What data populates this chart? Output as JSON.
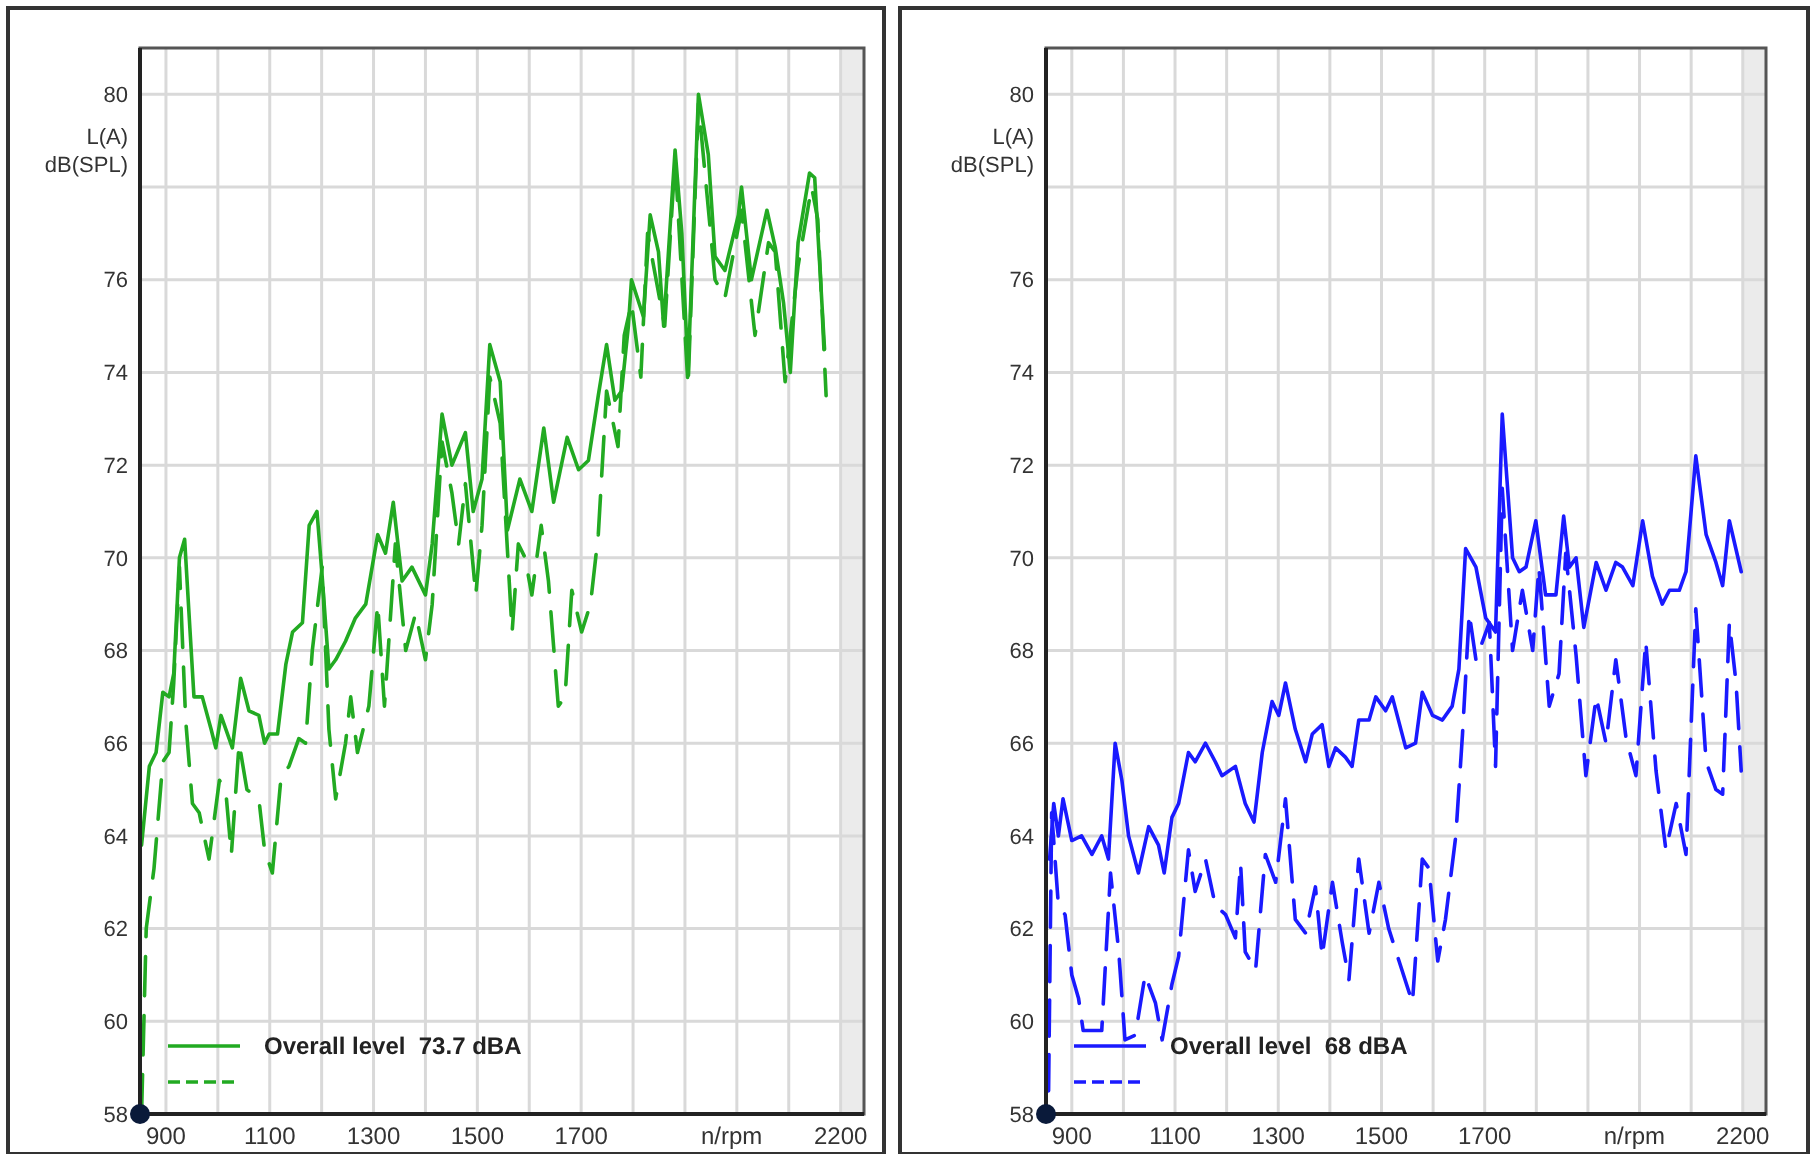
{
  "chart_data": [
    {
      "type": "line",
      "xlabel": "n/rpm",
      "ylabel": "L(A)\ndB(SPL)",
      "xlim": [
        850,
        2245
      ],
      "ylim": [
        58,
        81
      ],
      "xticks": [
        900,
        {
          "value": 1000,
          "label": null
        },
        1100,
        {
          "value": 1200,
          "label": null
        },
        1300,
        {
          "value": 1400,
          "label": null
        },
        1500,
        {
          "value": 1600,
          "label": null
        },
        1700,
        {
          "value": 1800,
          "label": null
        },
        {
          "value": 1900,
          "label": null
        },
        {
          "value": 2000,
          "label": null
        },
        {
          "value": 2100,
          "label": null
        },
        2200
      ],
      "yticks": [
        58,
        60,
        62,
        64,
        66,
        68,
        70,
        72,
        74,
        76,
        {
          "value": 78,
          "label": null
        },
        80
      ],
      "grid": true,
      "legend": "bottom left",
      "bands": [
        {
          "axis": "x",
          "from": 2200,
          "to": 2245,
          "color": "#ebebeb"
        }
      ],
      "series": [
        {
          "name": "Overall level  73.7 dBA",
          "color": "#22aa22",
          "line_style": "solid",
          "x": [
            853,
            868,
            881,
            894,
            906,
            915,
            926,
            936,
            946,
            954,
            970,
            987,
            996,
            1006,
            1028,
            1044,
            1060,
            1079,
            1090,
            1099,
            1115,
            1131,
            1144,
            1163,
            1176,
            1191,
            1201,
            1214,
            1227,
            1246,
            1265,
            1285,
            1308,
            1323,
            1338,
            1355,
            1374,
            1400,
            1413,
            1432,
            1451,
            1477,
            1492,
            1509,
            1524,
            1544,
            1558,
            1582,
            1605,
            1628,
            1647,
            1673,
            1695,
            1714,
            1733,
            1749,
            1765,
            1778,
            1791,
            1797,
            1820,
            1833,
            1849,
            1859,
            1881,
            1894,
            1906,
            1926,
            1945,
            1958,
            1977,
            2003,
            2009,
            2028,
            2058,
            2074,
            2090,
            2103,
            2118,
            2140,
            2150,
            2169
          ],
          "values": [
            63.8,
            65.5,
            65.8,
            67.1,
            67.0,
            67.5,
            70.0,
            70.4,
            68.5,
            67.0,
            67.0,
            66.3,
            65.9,
            66.6,
            65.9,
            67.4,
            66.7,
            66.6,
            66.0,
            66.2,
            66.2,
            67.7,
            68.4,
            68.6,
            70.7,
            71.0,
            69.6,
            67.6,
            67.8,
            68.2,
            68.7,
            69.0,
            70.5,
            70.1,
            71.2,
            69.5,
            69.8,
            69.2,
            70.3,
            73.1,
            72.0,
            72.7,
            71.0,
            71.7,
            74.6,
            73.8,
            70.6,
            71.7,
            71.0,
            72.8,
            71.2,
            72.6,
            71.9,
            72.1,
            73.5,
            74.6,
            73.4,
            73.6,
            75.0,
            76.0,
            75.2,
            77.4,
            76.6,
            75.0,
            78.8,
            77.0,
            74.0,
            80.0,
            78.7,
            76.5,
            76.2,
            77.4,
            78.0,
            76.0,
            77.5,
            76.7,
            75.5,
            74.0,
            76.8,
            78.3,
            78.2,
            74.5
          ]
        },
        {
          "color": "#22aa22",
          "line_style": "dashed",
          "x": [
            853,
            862,
            877,
            894,
            906,
            915,
            926,
            938,
            951,
            964,
            983,
            1003,
            1015,
            1026,
            1041,
            1056,
            1079,
            1090,
            1105,
            1122,
            1137,
            1156,
            1169,
            1182,
            1201,
            1214,
            1227,
            1246,
            1256,
            1269,
            1291,
            1308,
            1321,
            1342,
            1362,
            1381,
            1400,
            1413,
            1432,
            1451,
            1464,
            1477,
            1497,
            1509,
            1524,
            1544,
            1567,
            1579,
            1592,
            1605,
            1623,
            1637,
            1656,
            1669,
            1682,
            1701,
            1718,
            1733,
            1749,
            1771,
            1783,
            1797,
            1815,
            1828,
            1861,
            1881,
            1906,
            1926,
            1958,
            1977,
            2009,
            2035,
            2061,
            2074,
            2093,
            2118,
            2144,
            2156,
            2172
          ],
          "values": [
            58.0,
            62.0,
            63.3,
            65.6,
            65.8,
            67.3,
            69.8,
            66.5,
            64.7,
            64.5,
            63.5,
            65.2,
            65.0,
            63.6,
            66.0,
            65.0,
            64.8,
            63.7,
            63.2,
            65.3,
            65.5,
            66.1,
            66.0,
            68.0,
            69.8,
            66.3,
            64.8,
            66.0,
            67.0,
            65.8,
            66.8,
            69.0,
            66.8,
            70.3,
            68.0,
            68.8,
            67.8,
            69.0,
            72.5,
            71.4,
            70.3,
            71.6,
            69.2,
            70.7,
            73.9,
            72.9,
            68.4,
            70.3,
            70.0,
            69.2,
            70.7,
            69.5,
            66.8,
            67.0,
            69.3,
            68.4,
            69.0,
            70.5,
            73.6,
            72.4,
            74.8,
            75.5,
            73.9,
            77.0,
            75.0,
            78.6,
            73.7,
            79.8,
            76.0,
            75.6,
            77.5,
            74.8,
            76.8,
            76.6,
            73.8,
            76.3,
            78.0,
            77.3,
            73.5
          ]
        }
      ]
    },
    {
      "type": "line",
      "xlabel": "n/rpm",
      "ylabel": "L(A)\ndB(SPL)",
      "xlim": [
        850,
        2245
      ],
      "ylim": [
        58,
        81
      ],
      "xticks": [
        900,
        {
          "value": 1000,
          "label": null
        },
        1100,
        {
          "value": 1200,
          "label": null
        },
        1300,
        {
          "value": 1400,
          "label": null
        },
        1500,
        {
          "value": 1600,
          "label": null
        },
        1700,
        {
          "value": 1800,
          "label": null
        },
        {
          "value": 1900,
          "label": null
        },
        {
          "value": 2000,
          "label": null
        },
        {
          "value": 2100,
          "label": null
        },
        2200
      ],
      "yticks": [
        58,
        60,
        62,
        64,
        66,
        68,
        70,
        72,
        74,
        76,
        {
          "value": 78,
          "label": null
        },
        80
      ],
      "grid": true,
      "legend": "bottom left",
      "bands": [
        {
          "axis": "x",
          "from": 2200,
          "to": 2245,
          "color": "#ebebeb"
        }
      ],
      "series": [
        {
          "name": "Overall level  68 dBA",
          "color": "#1a1aff",
          "line_style": "solid",
          "x": [
            857,
            865,
            874,
            883,
            900,
            919,
            939,
            958,
            971,
            984,
            997,
            1010,
            1029,
            1049,
            1068,
            1079,
            1094,
            1107,
            1126,
            1139,
            1159,
            1178,
            1191,
            1217,
            1236,
            1253,
            1269,
            1288,
            1301,
            1314,
            1333,
            1353,
            1366,
            1385,
            1398,
            1411,
            1430,
            1443,
            1456,
            1476,
            1489,
            1508,
            1521,
            1547,
            1566,
            1579,
            1599,
            1618,
            1637,
            1650,
            1663,
            1683,
            1702,
            1721,
            1734,
            1754,
            1767,
            1780,
            1799,
            1818,
            1838,
            1853,
            1864,
            1877,
            1892,
            1916,
            1935,
            1954,
            1967,
            1987,
            2006,
            2025,
            2044,
            2058,
            2077,
            2090,
            2109,
            2129,
            2148,
            2161,
            2174,
            2197
          ],
          "values": [
            63.5,
            64.7,
            64.0,
            64.8,
            63.9,
            64.0,
            63.6,
            64.0,
            63.5,
            66.0,
            65.2,
            64.0,
            63.2,
            64.2,
            63.8,
            63.2,
            64.4,
            64.7,
            65.8,
            65.6,
            66.0,
            65.6,
            65.3,
            65.5,
            64.7,
            64.3,
            65.8,
            66.9,
            66.6,
            67.3,
            66.3,
            65.6,
            66.2,
            66.4,
            65.5,
            65.9,
            65.7,
            65.5,
            66.5,
            66.5,
            67.0,
            66.7,
            67.0,
            65.9,
            66.0,
            67.1,
            66.6,
            66.5,
            66.8,
            67.6,
            70.2,
            69.8,
            68.7,
            68.4,
            73.1,
            70.0,
            69.7,
            69.8,
            70.8,
            69.2,
            69.2,
            70.9,
            69.8,
            70.0,
            68.5,
            69.9,
            69.3,
            69.9,
            69.8,
            69.4,
            70.8,
            69.6,
            69.0,
            69.3,
            69.3,
            69.7,
            72.2,
            70.5,
            69.9,
            69.4,
            70.8,
            69.7
          ]
        },
        {
          "color": "#1a1aff",
          "line_style": "dashed",
          "x": [
            855,
            861,
            874,
            887,
            900,
            913,
            922,
            939,
            958,
            975,
            991,
            1003,
            1023,
            1042,
            1062,
            1075,
            1094,
            1107,
            1126,
            1139,
            1159,
            1178,
            1198,
            1217,
            1227,
            1236,
            1256,
            1275,
            1295,
            1314,
            1333,
            1353,
            1372,
            1385,
            1405,
            1424,
            1437,
            1456,
            1476,
            1495,
            1514,
            1534,
            1560,
            1579,
            1592,
            1609,
            1624,
            1644,
            1657,
            1670,
            1683,
            1709,
            1721,
            1734,
            1754,
            1773,
            1793,
            1805,
            1825,
            1844,
            1857,
            1877,
            1896,
            1916,
            1935,
            1954,
            1974,
            1993,
            2012,
            2032,
            2051,
            2071,
            2090,
            2109,
            2129,
            2148,
            2161,
            2174,
            2187,
            2197
          ],
          "values": [
            58.5,
            64.5,
            62.5,
            62.3,
            61.0,
            60.5,
            59.8,
            59.8,
            59.8,
            63.2,
            61.5,
            59.6,
            59.7,
            61.0,
            60.4,
            59.6,
            60.8,
            61.4,
            63.7,
            62.8,
            63.5,
            62.5,
            62.3,
            61.8,
            63.4,
            61.5,
            61.1,
            63.6,
            63.0,
            64.8,
            62.2,
            61.9,
            62.9,
            61.4,
            63.0,
            61.7,
            60.9,
            63.5,
            61.9,
            63.0,
            62.0,
            61.3,
            60.4,
            63.5,
            63.3,
            61.3,
            62.2,
            64.0,
            66.2,
            68.8,
            67.8,
            68.6,
            65.5,
            71.5,
            68.0,
            69.3,
            68.0,
            69.8,
            66.8,
            67.5,
            70.1,
            67.9,
            65.3,
            67.0,
            66.0,
            67.8,
            66.1,
            65.3,
            68.2,
            65.4,
            63.7,
            64.7,
            63.6,
            68.9,
            65.6,
            65.0,
            64.9,
            68.6,
            67.3,
            65.4
          ]
        }
      ]
    }
  ]
}
